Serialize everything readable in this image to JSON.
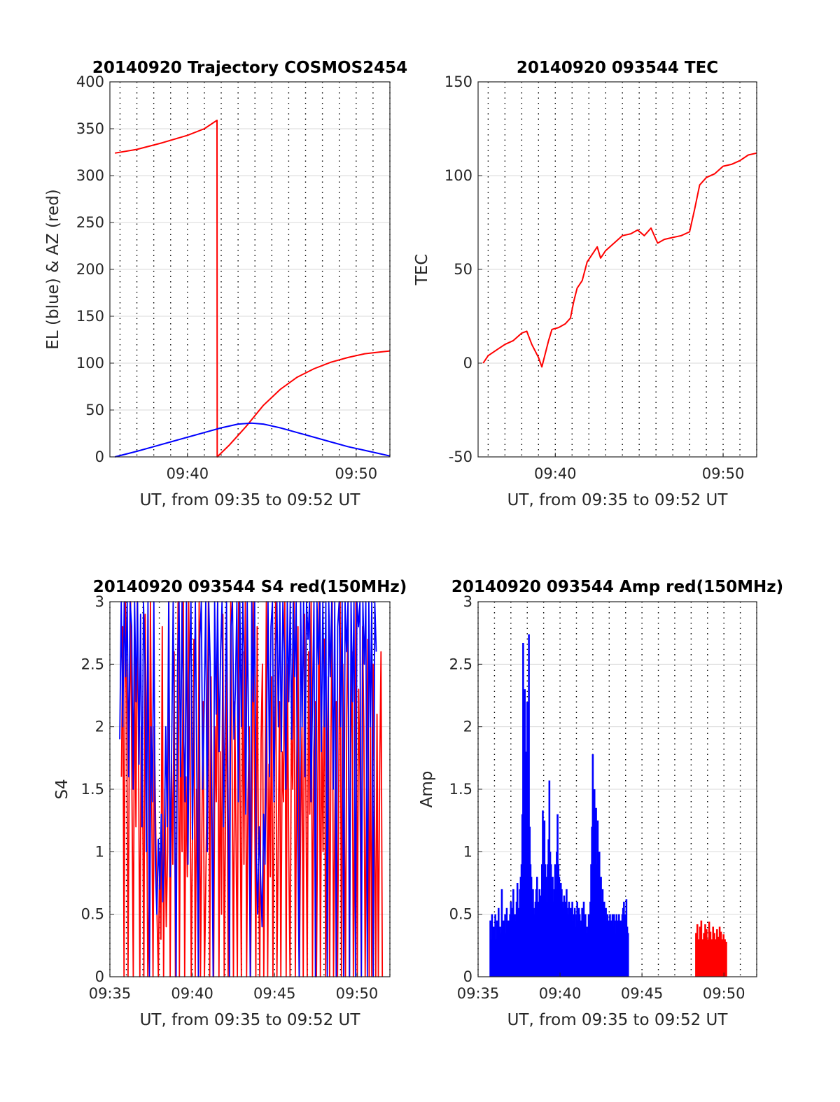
{
  "colors": {
    "el": "#0000ff",
    "az": "#ff0000",
    "grid": "#d9d9d9",
    "dotgrid": "#000000",
    "axis": "#262626"
  },
  "chart_data": [
    {
      "type": "line",
      "title": "20140920 Trajectory COSMOS2454",
      "xlabel": "UT, from 09:35 to 09:52 UT",
      "ylabel": "EL (blue) & AZ (red)",
      "xlim": [
        35.4,
        52.0
      ],
      "ylim": [
        0,
        400
      ],
      "yticks": [
        0,
        50,
        100,
        150,
        200,
        250,
        300,
        350,
        400
      ],
      "xticks": [
        {
          "value": 40,
          "label": "09:40"
        },
        {
          "value": 50,
          "label": "09:50"
        }
      ],
      "grid": true,
      "series": [
        {
          "name": "AZ",
          "color": "#ff0000",
          "points": [
            [
              35.7,
              324
            ],
            [
              37.0,
              328
            ],
            [
              38.5,
              335
            ],
            [
              40.0,
              343
            ],
            [
              41.0,
              350
            ],
            [
              41.75,
              359
            ],
            [
              41.76,
              0
            ],
            [
              42.5,
              13
            ],
            [
              43.5,
              33
            ],
            [
              44.5,
              55
            ],
            [
              45.5,
              72
            ],
            [
              46.5,
              85
            ],
            [
              47.5,
              94
            ],
            [
              48.5,
              101
            ],
            [
              49.5,
              106
            ],
            [
              50.5,
              110
            ],
            [
              51.5,
              112
            ],
            [
              52.0,
              113
            ]
          ]
        },
        {
          "name": "EL",
          "color": "#0000ff",
          "points": [
            [
              35.7,
              0
            ],
            [
              37.0,
              6
            ],
            [
              38.0,
              11
            ],
            [
              39.0,
              16
            ],
            [
              40.0,
              21
            ],
            [
              41.0,
              26
            ],
            [
              42.0,
              31
            ],
            [
              43.0,
              35
            ],
            [
              43.8,
              36
            ],
            [
              44.5,
              35
            ],
            [
              45.5,
              31
            ],
            [
              46.5,
              26
            ],
            [
              47.5,
              21
            ],
            [
              48.5,
              16
            ],
            [
              49.5,
              11
            ],
            [
              50.5,
              7
            ],
            [
              51.5,
              3
            ],
            [
              52.0,
              1
            ]
          ]
        }
      ]
    },
    {
      "type": "line",
      "title": "20140920 093544 TEC",
      "xlabel": "UT, from 09:35 to 09:52 UT",
      "ylabel": "TEC",
      "xlim": [
        35.4,
        52.0
      ],
      "ylim": [
        -50,
        150
      ],
      "yticks": [
        -50,
        0,
        50,
        100,
        150
      ],
      "xticks": [
        {
          "value": 40,
          "label": "09:40"
        },
        {
          "value": 50,
          "label": "09:50"
        }
      ],
      "grid": true,
      "series": [
        {
          "name": "TEC",
          "color": "#ff0000",
          "points": [
            [
              35.7,
              0
            ],
            [
              36.0,
              4
            ],
            [
              36.5,
              7
            ],
            [
              37.0,
              10
            ],
            [
              37.5,
              12
            ],
            [
              38.0,
              16
            ],
            [
              38.3,
              17
            ],
            [
              38.6,
              10
            ],
            [
              39.0,
              3
            ],
            [
              39.2,
              -2
            ],
            [
              39.4,
              5
            ],
            [
              39.6,
              12
            ],
            [
              39.8,
              18
            ],
            [
              40.2,
              19
            ],
            [
              40.6,
              21
            ],
            [
              40.9,
              24
            ],
            [
              41.1,
              33
            ],
            [
              41.3,
              40
            ],
            [
              41.6,
              44
            ],
            [
              41.9,
              54
            ],
            [
              42.2,
              58
            ],
            [
              42.5,
              62
            ],
            [
              42.7,
              56
            ],
            [
              43.0,
              60
            ],
            [
              43.5,
              64
            ],
            [
              44.0,
              68
            ],
            [
              44.5,
              69
            ],
            [
              44.9,
              71
            ],
            [
              45.3,
              68
            ],
            [
              45.7,
              72
            ],
            [
              46.1,
              64
            ],
            [
              46.5,
              66
            ],
            [
              47.0,
              67
            ],
            [
              47.5,
              68
            ],
            [
              48.0,
              70
            ],
            [
              48.3,
              82
            ],
            [
              48.6,
              95
            ],
            [
              49.0,
              99
            ],
            [
              49.5,
              101
            ],
            [
              50.0,
              105
            ],
            [
              50.5,
              106
            ],
            [
              51.0,
              108
            ],
            [
              51.5,
              111
            ],
            [
              52.0,
              112
            ]
          ]
        }
      ]
    },
    {
      "type": "line",
      "title": "20140920 093544 S4 red(150MHz)",
      "xlabel": "UT, from 09:35 to 09:52 UT",
      "ylabel": "S4",
      "xlim": [
        35.0,
        52.0
      ],
      "ylim": [
        0,
        3
      ],
      "yticks": [
        0,
        0.5,
        1,
        1.5,
        2,
        2.5,
        3
      ],
      "xticks": [
        {
          "value": 35,
          "label": "09:35"
        },
        {
          "value": 40,
          "label": "09:40"
        },
        {
          "value": 45,
          "label": "09:45"
        },
        {
          "value": 50,
          "label": "09:50"
        }
      ],
      "grid": true,
      "series": [
        {
          "name": "S4 red",
          "color": "#ff0000",
          "x_start": 35.7,
          "x_step": 0.08,
          "values": [
            1.6,
            2.8,
            0.0,
            3.0,
            2.2,
            0.0,
            1.9,
            3.0,
            1.5,
            0.0,
            2.6,
            1.2,
            3.0,
            1.8,
            0.0,
            2.0,
            1.6,
            0.0,
            2.9,
            1.9,
            0.0,
            0.6,
            3.0,
            1.4,
            0.0,
            2.0,
            1.2,
            0.5,
            0.0,
            1.0,
            0.3,
            2.8,
            0.0,
            1.5,
            0.4,
            1.0,
            3.0,
            0.0,
            1.7,
            0.9,
            2.6,
            0.0,
            1.3,
            3.0,
            0.0,
            2.1,
            1.0,
            3.0,
            0.0,
            1.6,
            0.8,
            3.0,
            1.9,
            0.0,
            1.2,
            2.7,
            0.0,
            1.5,
            0.6,
            3.0,
            0.0,
            1.1,
            2.2,
            0.0,
            0.7,
            1.6,
            3.0,
            0.0,
            2.4,
            1.0,
            0.0,
            2.0,
            1.4,
            3.0,
            0.0,
            1.8,
            0.5,
            2.9,
            0.0,
            1.3,
            2.5,
            0.0,
            1.0,
            3.0,
            1.7,
            0.0,
            2.2,
            1.1,
            0.0,
            3.0,
            1.5,
            0.0,
            2.6,
            0.9,
            3.0,
            0.0,
            1.4,
            2.0,
            0.0,
            1.2,
            3.0,
            1.6,
            0.0,
            2.8,
            1.0,
            0.0,
            1.9,
            2.5,
            0.0,
            1.3,
            3.0,
            0.0,
            1.7,
            0.8,
            2.4,
            0.0,
            1.5,
            3.0,
            0.0,
            1.1,
            2.2,
            0.0,
            1.8,
            1.4,
            3.0,
            0.0,
            2.5,
            1.0,
            0.0,
            2.0,
            1.5,
            3.0,
            0.0,
            1.6,
            2.8,
            0.0,
            1.2,
            2.0,
            0.0,
            2.9,
            1.5,
            0.0,
            2.6,
            1.3,
            3.0,
            0.0,
            1.8,
            2.2,
            0.0,
            1.4,
            3.0,
            0.0,
            2.0,
            1.0,
            2.7,
            0.0,
            1.6,
            2.4,
            0.0,
            1.9,
            3.0,
            0.0,
            1.3,
            2.2,
            0.0,
            1.7,
            3.0,
            0.0,
            2.5,
            1.5,
            0.0,
            2.1,
            3.0,
            0.0,
            1.8,
            2.6,
            0.0,
            1.4,
            3.0,
            0.0,
            2.3,
            1.6,
            0.0,
            2.8,
            2.0,
            0.0,
            1.5,
            2.7,
            0.0,
            2.0,
            0.0,
            2.5,
            1.4,
            0.0,
            2.1,
            0.0,
            1.6,
            2.6,
            0.0
          ]
        },
        {
          "name": "S4 blue",
          "color": "#0000ff",
          "x_start": 35.6,
          "x_step": 0.09,
          "values": [
            1.9,
            3.0,
            2.0,
            3.0,
            2.4,
            3.0,
            1.6,
            3.0,
            2.8,
            1.5,
            3.0,
            2.2,
            3.0,
            1.7,
            2.9,
            1.2,
            3.0,
            2.5,
            1.0,
            3.0,
            0.0,
            2.0,
            1.4,
            3.0,
            0.9,
            0.5,
            1.1,
            0.7,
            1.3,
            0.6,
            1.0,
            2.0,
            1.2,
            3.0,
            0.8,
            1.8,
            3.0,
            1.3,
            0.0,
            2.5,
            3.0,
            1.6,
            3.0,
            2.0,
            1.4,
            3.0,
            0.9,
            2.4,
            3.0,
            1.1,
            2.0,
            3.0,
            1.6,
            0.0,
            2.7,
            3.0,
            1.5,
            2.2,
            3.0,
            1.0,
            3.0,
            2.5,
            1.4,
            0.0,
            3.0,
            2.1,
            3.0,
            1.8,
            2.6,
            3.0,
            1.2,
            2.0,
            3.0,
            1.5,
            0.0,
            2.8,
            3.0,
            1.9,
            2.3,
            3.0,
            1.4,
            3.0,
            2.0,
            3.0,
            2.5,
            1.3,
            3.0,
            1.8,
            0.0,
            3.0,
            2.2,
            3.0,
            1.0,
            0.5,
            1.2,
            0.8,
            0.4,
            1.3,
            0.9,
            2.0,
            3.0,
            1.6,
            2.8,
            3.0,
            1.4,
            2.5,
            3.0,
            2.0,
            3.0,
            1.8,
            3.0,
            2.6,
            1.5,
            3.0,
            2.2,
            3.0,
            1.9,
            3.0,
            2.4,
            3.0,
            1.2,
            0.0,
            3.0,
            2.0,
            3.0,
            1.6,
            3.0,
            2.7,
            3.0,
            1.4,
            2.2,
            3.0,
            0.0,
            3.0,
            2.5,
            3.0,
            1.8,
            3.0,
            2.0,
            3.0,
            0.0,
            3.0,
            2.4,
            3.0,
            1.5,
            3.0,
            0.0,
            2.8,
            3.0,
            2.0,
            3.0,
            0.0,
            3.0,
            2.6,
            3.0,
            0.0,
            3.0,
            2.2,
            3.0,
            0.0,
            3.0,
            2.8,
            3.0,
            0.0,
            3.0,
            2.5,
            3.0,
            0.0,
            3.0,
            2.0,
            3.0,
            0.0,
            3.0,
            2.6
          ]
        }
      ]
    },
    {
      "type": "bar",
      "title": "20140920 093544 Amp red(150MHz)",
      "xlabel": "UT, from 09:35 to 09:52 UT",
      "ylabel": "Amp",
      "xlim": [
        35.0,
        52.0
      ],
      "ylim": [
        0,
        3
      ],
      "yticks": [
        0,
        0.5,
        1,
        1.5,
        2,
        2.5,
        3
      ],
      "xticks": [
        {
          "value": 35,
          "label": "09:35"
        },
        {
          "value": 40,
          "label": "09:40"
        },
        {
          "value": 45,
          "label": "09:45"
        },
        {
          "value": 50,
          "label": "09:50"
        }
      ],
      "grid": true,
      "series": [
        {
          "name": "Amp blue",
          "color": "#0000ff",
          "x_start": 35.75,
          "x_step": 0.05,
          "values": [
            0.45,
            0.3,
            0.5,
            0.35,
            0.4,
            0.25,
            0.5,
            0.3,
            0.45,
            0.35,
            0.55,
            0.3,
            0.4,
            0.35,
            0.7,
            0.3,
            0.45,
            0.4,
            0.5,
            0.35,
            0.55,
            0.4,
            0.45,
            0.35,
            0.5,
            0.6,
            0.45,
            0.55,
            0.7,
            0.4,
            0.5,
            0.45,
            0.6,
            0.75,
            0.5,
            0.55,
            0.7,
            0.8,
            0.9,
            1.3,
            2.67,
            1.5,
            2.3,
            1.8,
            1.2,
            2.2,
            1.6,
            2.74,
            1.2,
            0.9,
            0.8,
            0.6,
            0.7,
            0.55,
            0.5,
            0.6,
            0.7,
            0.8,
            0.55,
            0.6,
            0.7,
            0.65,
            0.55,
            0.9,
            1.33,
            1.1,
            1.25,
            0.9,
            0.8,
            0.6,
            0.9,
            1.1,
            1.57,
            1.0,
            0.9,
            0.7,
            0.8,
            0.6,
            0.7,
            0.9,
            0.7,
            1.0,
            1.3,
            0.9,
            0.8,
            0.6,
            0.75,
            0.7,
            0.6,
            0.55,
            0.65,
            0.5,
            0.6,
            0.7,
            0.55,
            0.5,
            0.6,
            0.45,
            0.55,
            0.5,
            0.6,
            0.45,
            0.5,
            0.55,
            0.4,
            0.5,
            0.6,
            0.45,
            0.55,
            0.5,
            0.4,
            0.45,
            0.55,
            0.5,
            0.6,
            0.45,
            0.5,
            0.4,
            0.35,
            0.4,
            0.5,
            0.45,
            0.6,
            0.9,
            1.2,
            1.78,
            1.3,
            1.5,
            1.0,
            1.35,
            0.9,
            1.25,
            0.8,
            1.0,
            0.7,
            0.8,
            0.6,
            0.7,
            0.5,
            0.6,
            0.4,
            0.55,
            0.45,
            0.5,
            0.4,
            0.45,
            0.5,
            0.35,
            0.45,
            0.5,
            0.4,
            0.5,
            0.45,
            0.35,
            0.5,
            0.4,
            0.45,
            0.5,
            0.35,
            0.45,
            0.4,
            0.5,
            0.55,
            0.6,
            0.45,
            0.5,
            0.62,
            0.4,
            0.35
          ]
        },
        {
          "name": "Amp red",
          "color": "#ff0000",
          "x_start": 48.3,
          "x_step": 0.08,
          "values": [
            0.35,
            0.42,
            0.3,
            0.4,
            0.45,
            0.3,
            0.35,
            0.42,
            0.38,
            0.3,
            0.44,
            0.36,
            0.3,
            0.4,
            0.35,
            0.3,
            0.38,
            0.32,
            0.4,
            0.36,
            0.3,
            0.34,
            0.3,
            0.28
          ]
        }
      ]
    }
  ]
}
